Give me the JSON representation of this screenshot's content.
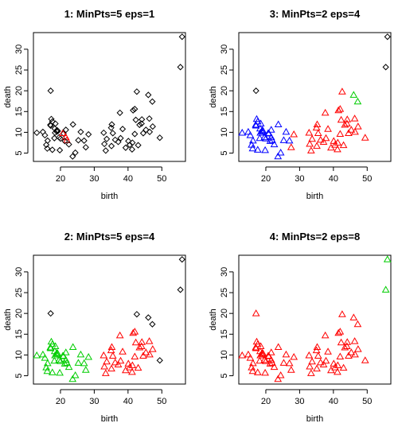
{
  "colors": {
    "noise": "#000000",
    "cluster_1": "#ff0000",
    "cluster_2": "#00cd00",
    "cluster_3": "#0000ff"
  },
  "points": {
    "birth": [
      14.8,
      13.0,
      16.2,
      17.0,
      18.3,
      15.8,
      19.2,
      17.3,
      18.5,
      20.0,
      16.1,
      18.2,
      17.6,
      19.0,
      15.4,
      20.9,
      19.6,
      17.1,
      18.4,
      21.6,
      20.7,
      21.9,
      17.6,
      19.8,
      18.9,
      21.3,
      22.5,
      23.7,
      26.0,
      17.1,
      25.3,
      24.4,
      27.0,
      27.5,
      21.6,
      23.6,
      28.3,
      33.4,
      33.0,
      35.1,
      36.2,
      37.1,
      35.5,
      37.8,
      35.2,
      37.6,
      32.8,
      38.4,
      39.3,
      42.0,
      43.0,
      44.0,
      44.1,
      43.4,
      44.5,
      45.3,
      42.3,
      41.5,
      42.6,
      41.3,
      46.3,
      42.0,
      40.1,
      49.4,
      47.3,
      46.4,
      33.7,
      35.0,
      40.5,
      41.2,
      46.0,
      47.2,
      55.5,
      56.0
    ],
    "death": [
      10.1,
      9.9,
      8.0,
      11.8,
      10.9,
      7.0,
      10.3,
      13.2,
      12.1,
      8.5,
      6.1,
      8.6,
      5.8,
      10.5,
      9.3,
      9.7,
      8.8,
      11.6,
      9.9,
      8.8,
      9.8,
      8.1,
      12.6,
      5.7,
      10.2,
      7.9,
      7.1,
      11.9,
      10.1,
      20.0,
      8.1,
      5.1,
      8.0,
      6.4,
      10.6,
      4.2,
      9.5,
      5.6,
      7.2,
      6.7,
      8.2,
      7.7,
      9.8,
      8.6,
      11.9,
      14.7,
      9.9,
      10.8,
      6.3,
      15.6,
      6.9,
      12.1,
      13.1,
      11.8,
      9.8,
      10.6,
      13.0,
      15.3,
      19.8,
      7.5,
      13.3,
      9.6,
      7.9,
      8.7,
      11.4,
      10.1,
      8.4,
      11.1,
      7.0,
      5.9,
      19.0,
      17.4,
      25.7,
      33.0
    ]
  },
  "chart_data": [
    {
      "type": "scatter",
      "title": "1: MinPts=5 eps=1",
      "xlabel": "birth",
      "ylabel": "death",
      "xticks": [
        20,
        30,
        40,
        50
      ],
      "yticks": [
        5,
        10,
        15,
        20,
        25,
        30
      ],
      "xlim": [
        12,
        57
      ],
      "ylim": [
        3,
        34
      ],
      "cluster": [
        0,
        0,
        0,
        0,
        0,
        0,
        0,
        0,
        0,
        0,
        0,
        0,
        0,
        0,
        0,
        0,
        0,
        0,
        0,
        1,
        1,
        1,
        0,
        0,
        0,
        0,
        0,
        0,
        0,
        0,
        0,
        0,
        0,
        0,
        0,
        0,
        0,
        0,
        0,
        0,
        0,
        0,
        0,
        0,
        0,
        0,
        0,
        0,
        0,
        0,
        0,
        0,
        0,
        0,
        0,
        0,
        0,
        0,
        0,
        0,
        0,
        0,
        0,
        0,
        0,
        0,
        0,
        0,
        0,
        0,
        0,
        0,
        0,
        0
      ]
    },
    {
      "type": "scatter",
      "title": "3: MinPts=2 eps=4",
      "xlabel": "birth",
      "ylabel": "death",
      "xticks": [
        20,
        30,
        40,
        50
      ],
      "yticks": [
        5,
        10,
        15,
        20,
        25,
        30
      ],
      "xlim": [
        12,
        57
      ],
      "ylim": [
        3,
        34
      ],
      "cluster": [
        3,
        3,
        3,
        3,
        3,
        3,
        3,
        3,
        3,
        3,
        3,
        3,
        3,
        3,
        3,
        3,
        3,
        3,
        3,
        3,
        3,
        3,
        3,
        3,
        3,
        3,
        3,
        3,
        3,
        0,
        3,
        3,
        3,
        1,
        3,
        3,
        1,
        1,
        1,
        1,
        1,
        1,
        1,
        1,
        1,
        1,
        1,
        1,
        1,
        1,
        1,
        1,
        1,
        1,
        1,
        1,
        1,
        1,
        1,
        1,
        1,
        1,
        1,
        1,
        1,
        1,
        1,
        1,
        1,
        1,
        2,
        2,
        0,
        0
      ]
    },
    {
      "type": "scatter",
      "title": "2: MinPts=5 eps=4",
      "xlabel": "birth",
      "ylabel": "death",
      "xticks": [
        20,
        30,
        40,
        50
      ],
      "yticks": [
        5,
        10,
        15,
        20,
        25,
        30
      ],
      "xlim": [
        12,
        57
      ],
      "ylim": [
        3,
        34
      ],
      "cluster": [
        2,
        2,
        2,
        2,
        2,
        2,
        2,
        2,
        2,
        2,
        2,
        2,
        2,
        2,
        2,
        2,
        2,
        2,
        2,
        2,
        2,
        2,
        2,
        2,
        2,
        2,
        2,
        2,
        2,
        0,
        2,
        2,
        2,
        2,
        2,
        2,
        2,
        1,
        1,
        1,
        1,
        1,
        1,
        1,
        1,
        1,
        1,
        1,
        1,
        1,
        1,
        1,
        1,
        1,
        1,
        1,
        1,
        1,
        0,
        1,
        1,
        1,
        1,
        0,
        1,
        1,
        1,
        1,
        1,
        1,
        0,
        0,
        0,
        0
      ]
    },
    {
      "type": "scatter",
      "title": "4: MinPts=2 eps=8",
      "xlabel": "birth",
      "ylabel": "death",
      "xticks": [
        20,
        30,
        40,
        50
      ],
      "yticks": [
        5,
        10,
        15,
        20,
        25,
        30
      ],
      "xlim": [
        12,
        57
      ],
      "ylim": [
        3,
        34
      ],
      "cluster": [
        1,
        1,
        1,
        1,
        1,
        1,
        1,
        1,
        1,
        1,
        1,
        1,
        1,
        1,
        1,
        1,
        1,
        1,
        1,
        1,
        1,
        1,
        1,
        1,
        1,
        1,
        1,
        1,
        1,
        1,
        1,
        1,
        1,
        1,
        1,
        1,
        1,
        1,
        1,
        1,
        1,
        1,
        1,
        1,
        1,
        1,
        1,
        1,
        1,
        1,
        1,
        1,
        1,
        1,
        1,
        1,
        1,
        1,
        1,
        1,
        1,
        1,
        1,
        1,
        1,
        1,
        1,
        1,
        1,
        1,
        1,
        1,
        2,
        2
      ]
    }
  ]
}
